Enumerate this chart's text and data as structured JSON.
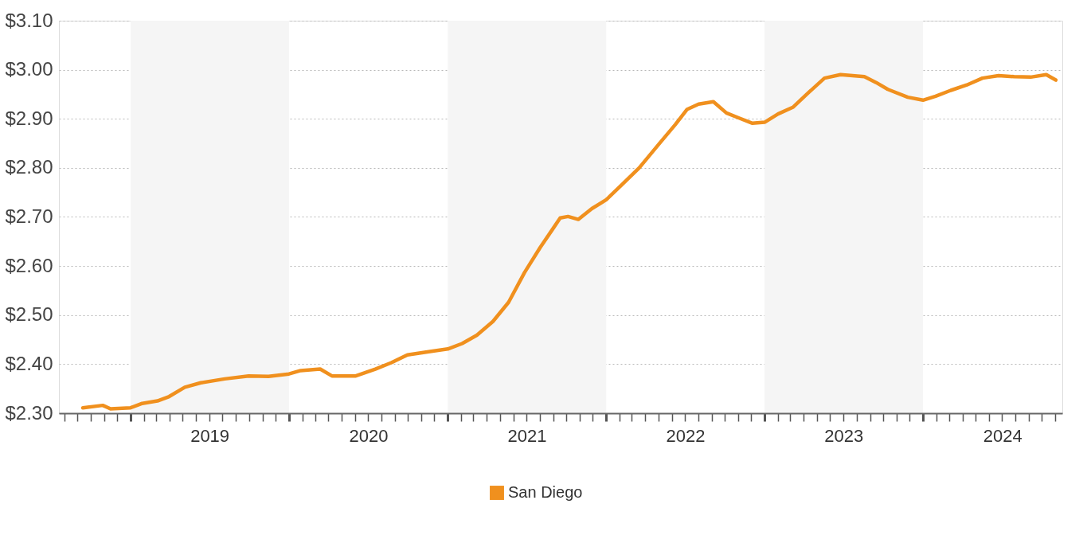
{
  "chart_data": {
    "type": "line",
    "x": [
      "2018-09-13",
      "2018-10-29",
      "2018-11-16",
      "2019-01-01",
      "2019-01-28",
      "2019-03-04",
      "2019-03-31",
      "2019-05-06",
      "2019-06-12",
      "2019-08-06",
      "2019-09-30",
      "2019-11-15",
      "2020-01-01",
      "2020-01-28",
      "2020-03-13",
      "2020-04-09",
      "2020-06-03",
      "2020-07-18",
      "2020-08-24",
      "2020-09-30",
      "2020-11-24",
      "2021-01-01",
      "2021-02-03",
      "2021-03-09",
      "2021-04-15",
      "2021-05-21",
      "2021-06-27",
      "2021-08-02",
      "2021-08-29",
      "2021-09-17",
      "2021-10-05",
      "2021-10-29",
      "2021-11-29",
      "2022-01-01",
      "2022-02-03",
      "2022-03-18",
      "2022-05-03",
      "2022-06-09",
      "2022-07-06",
      "2022-08-02",
      "2022-09-05",
      "2022-10-05",
      "2022-11-02",
      "2022-12-04",
      "2023-01-01",
      "2023-02-01",
      "2023-03-08",
      "2023-04-13",
      "2023-05-19",
      "2023-06-25",
      "2023-08-19",
      "2023-09-15",
      "2023-10-12",
      "2023-11-27",
      "2024-01-01",
      "2024-01-30",
      "2024-03-05",
      "2024-04-11",
      "2024-05-17",
      "2024-06-23",
      "2024-07-29",
      "2024-09-05",
      "2024-10-11",
      "2024-11-02"
    ],
    "series": [
      {
        "name": "San Diego",
        "color": "#f0901e",
        "values": [
          2.311,
          2.316,
          2.309,
          2.311,
          2.32,
          2.325,
          2.334,
          2.353,
          2.362,
          2.37,
          2.376,
          2.375,
          2.38,
          2.387,
          2.39,
          2.376,
          2.376,
          2.39,
          2.403,
          2.419,
          2.426,
          2.431,
          2.442,
          2.459,
          2.487,
          2.526,
          2.587,
          2.638,
          2.673,
          2.698,
          2.701,
          2.695,
          2.717,
          2.735,
          2.763,
          2.8,
          2.849,
          2.888,
          2.919,
          2.93,
          2.935,
          2.912,
          2.902,
          2.891,
          2.893,
          2.91,
          2.924,
          2.954,
          2.983,
          2.99,
          2.986,
          2.974,
          2.96,
          2.944,
          2.938,
          2.946,
          2.958,
          2.969,
          2.983,
          2.988,
          2.986,
          2.985,
          2.99,
          2.979
        ]
      }
    ],
    "xlim": [
      "2018-07-20",
      "2024-11-17"
    ],
    "ylim": [
      2.3,
      3.1
    ],
    "yticks": [
      {
        "value": 2.3,
        "label": "$2.30"
      },
      {
        "value": 2.4,
        "label": "$2.40"
      },
      {
        "value": 2.5,
        "label": "$2.50"
      },
      {
        "value": 2.6,
        "label": "$2.60"
      },
      {
        "value": 2.7,
        "label": "$2.70"
      },
      {
        "value": 2.8,
        "label": "$2.80"
      },
      {
        "value": 2.9,
        "label": "$2.90"
      },
      {
        "value": 3.0,
        "label": "$3.00"
      },
      {
        "value": 3.1,
        "label": "$3.10"
      }
    ],
    "xticks": [
      {
        "value": "2019-07-02",
        "label": "2019"
      },
      {
        "value": "2020-07-02",
        "label": "2020"
      },
      {
        "value": "2021-07-02",
        "label": "2021"
      },
      {
        "value": "2022-07-02",
        "label": "2022"
      },
      {
        "value": "2023-07-02",
        "label": "2023"
      },
      {
        "value": "2024-07-02",
        "label": "2024"
      },
      {
        "value": "2018-08-01",
        "label": null
      },
      {
        "value": "2018-09-01",
        "label": null
      },
      {
        "value": "2018-10-01",
        "label": null
      },
      {
        "value": "2018-11-01",
        "label": null
      },
      {
        "value": "2018-12-01",
        "label": null
      },
      {
        "value": "2019-01-01",
        "label": null
      },
      {
        "value": "2019-02-01",
        "label": null
      },
      {
        "value": "2019-03-01",
        "label": null
      },
      {
        "value": "2019-04-01",
        "label": null
      },
      {
        "value": "2019-05-01",
        "label": null
      },
      {
        "value": "2019-06-01",
        "label": null
      },
      {
        "value": "2019-07-01",
        "label": null
      },
      {
        "value": "2019-08-01",
        "label": null
      },
      {
        "value": "2019-09-01",
        "label": null
      },
      {
        "value": "2019-10-01",
        "label": null
      },
      {
        "value": "2019-11-01",
        "label": null
      },
      {
        "value": "2019-12-01",
        "label": null
      },
      {
        "value": "2020-01-01",
        "label": null
      },
      {
        "value": "2020-02-01",
        "label": null
      },
      {
        "value": "2020-03-01",
        "label": null
      },
      {
        "value": "2020-04-01",
        "label": null
      },
      {
        "value": "2020-05-01",
        "label": null
      },
      {
        "value": "2020-06-01",
        "label": null
      },
      {
        "value": "2020-07-01",
        "label": null
      },
      {
        "value": "2020-08-01",
        "label": null
      },
      {
        "value": "2020-09-01",
        "label": null
      },
      {
        "value": "2020-10-01",
        "label": null
      },
      {
        "value": "2020-11-01",
        "label": null
      },
      {
        "value": "2020-12-01",
        "label": null
      },
      {
        "value": "2021-01-01",
        "label": null
      },
      {
        "value": "2021-02-01",
        "label": null
      },
      {
        "value": "2021-03-01",
        "label": null
      },
      {
        "value": "2021-04-01",
        "label": null
      },
      {
        "value": "2021-05-01",
        "label": null
      },
      {
        "value": "2021-06-01",
        "label": null
      },
      {
        "value": "2021-07-01",
        "label": null
      },
      {
        "value": "2021-08-01",
        "label": null
      },
      {
        "value": "2021-09-01",
        "label": null
      },
      {
        "value": "2021-10-01",
        "label": null
      },
      {
        "value": "2021-11-01",
        "label": null
      },
      {
        "value": "2021-12-01",
        "label": null
      },
      {
        "value": "2022-01-01",
        "label": null
      },
      {
        "value": "2022-02-01",
        "label": null
      },
      {
        "value": "2022-03-01",
        "label": null
      },
      {
        "value": "2022-04-01",
        "label": null
      },
      {
        "value": "2022-05-01",
        "label": null
      },
      {
        "value": "2022-06-01",
        "label": null
      },
      {
        "value": "2022-07-01",
        "label": null
      },
      {
        "value": "2022-08-01",
        "label": null
      },
      {
        "value": "2022-09-01",
        "label": null
      },
      {
        "value": "2022-10-01",
        "label": null
      },
      {
        "value": "2022-11-01",
        "label": null
      },
      {
        "value": "2022-12-01",
        "label": null
      },
      {
        "value": "2023-01-01",
        "label": null
      },
      {
        "value": "2023-02-01",
        "label": null
      },
      {
        "value": "2023-03-01",
        "label": null
      },
      {
        "value": "2023-04-01",
        "label": null
      },
      {
        "value": "2023-05-01",
        "label": null
      },
      {
        "value": "2023-06-01",
        "label": null
      },
      {
        "value": "2023-07-01",
        "label": null
      },
      {
        "value": "2023-08-01",
        "label": null
      },
      {
        "value": "2023-09-01",
        "label": null
      },
      {
        "value": "2023-10-01",
        "label": null
      },
      {
        "value": "2023-11-01",
        "label": null
      },
      {
        "value": "2023-12-01",
        "label": null
      },
      {
        "value": "2024-01-01",
        "label": null
      },
      {
        "value": "2024-02-01",
        "label": null
      },
      {
        "value": "2024-03-01",
        "label": null
      },
      {
        "value": "2024-04-01",
        "label": null
      },
      {
        "value": "2024-05-01",
        "label": null
      },
      {
        "value": "2024-06-01",
        "label": null
      },
      {
        "value": "2024-07-01",
        "label": null
      },
      {
        "value": "2024-08-01",
        "label": null
      },
      {
        "value": "2024-09-01",
        "label": null
      },
      {
        "value": "2024-10-01",
        "label": null
      },
      {
        "value": "2024-11-01",
        "label": null
      }
    ],
    "bands": [
      {
        "axis": "x",
        "from": "2019-01-01",
        "to": "2020-01-01",
        "color": "#f5f5f5"
      },
      {
        "axis": "x",
        "from": "2021-01-01",
        "to": "2022-01-01",
        "color": "#f5f5f5"
      },
      {
        "axis": "x",
        "from": "2023-01-01",
        "to": "2024-01-01",
        "color": "#f5f5f5"
      }
    ],
    "grid": "y",
    "legend": "bottom"
  }
}
